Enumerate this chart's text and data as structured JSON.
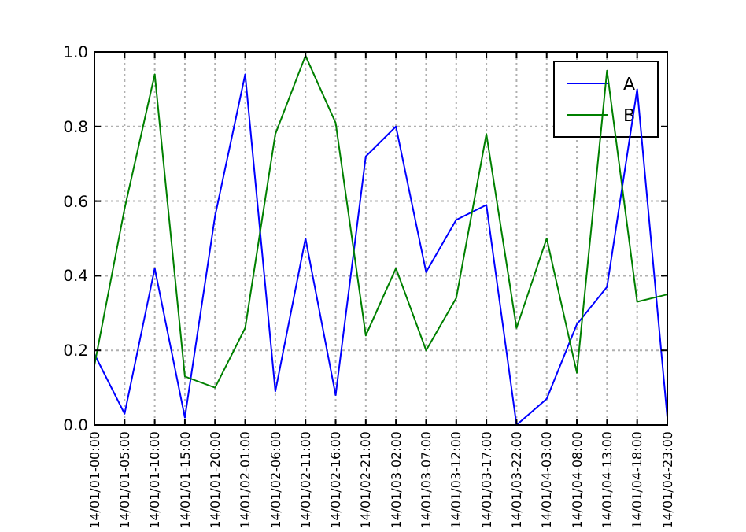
{
  "chart_data": {
    "type": "line",
    "categories": [
      "14/01/01-00:00",
      "14/01/01-05:00",
      "14/01/01-10:00",
      "14/01/01-15:00",
      "14/01/01-20:00",
      "14/01/02-01:00",
      "14/01/02-06:00",
      "14/01/02-11:00",
      "14/01/02-16:00",
      "14/01/02-21:00",
      "14/01/03-02:00",
      "14/01/03-07:00",
      "14/01/03-12:00",
      "14/01/03-17:00",
      "14/01/03-22:00",
      "14/01/04-03:00",
      "14/01/04-08:00",
      "14/01/04-13:00",
      "14/01/04-18:00",
      "14/01/04-23:00"
    ],
    "series": [
      {
        "name": "A",
        "color": "#0000ff",
        "values": [
          0.19,
          0.03,
          0.42,
          0.02,
          0.56,
          0.94,
          0.09,
          0.5,
          0.08,
          0.72,
          0.8,
          0.41,
          0.55,
          0.59,
          0.0,
          0.07,
          0.27,
          0.37,
          0.9,
          0.02
        ]
      },
      {
        "name": "B",
        "color": "#008000",
        "values": [
          0.16,
          0.58,
          0.94,
          0.13,
          0.1,
          0.26,
          0.78,
          0.99,
          0.81,
          0.24,
          0.42,
          0.2,
          0.34,
          0.78,
          0.26,
          0.5,
          0.14,
          0.95,
          0.33,
          0.35
        ]
      }
    ],
    "ylim": [
      0,
      1
    ],
    "yticks": [
      {
        "value": 0,
        "label": "0.0"
      },
      0.2,
      0.4,
      0.6,
      0.8,
      {
        "value": 1,
        "label": "1.0"
      }
    ],
    "grid": true,
    "legend": "top right",
    "line_style": "solid",
    "marker": "none"
  }
}
